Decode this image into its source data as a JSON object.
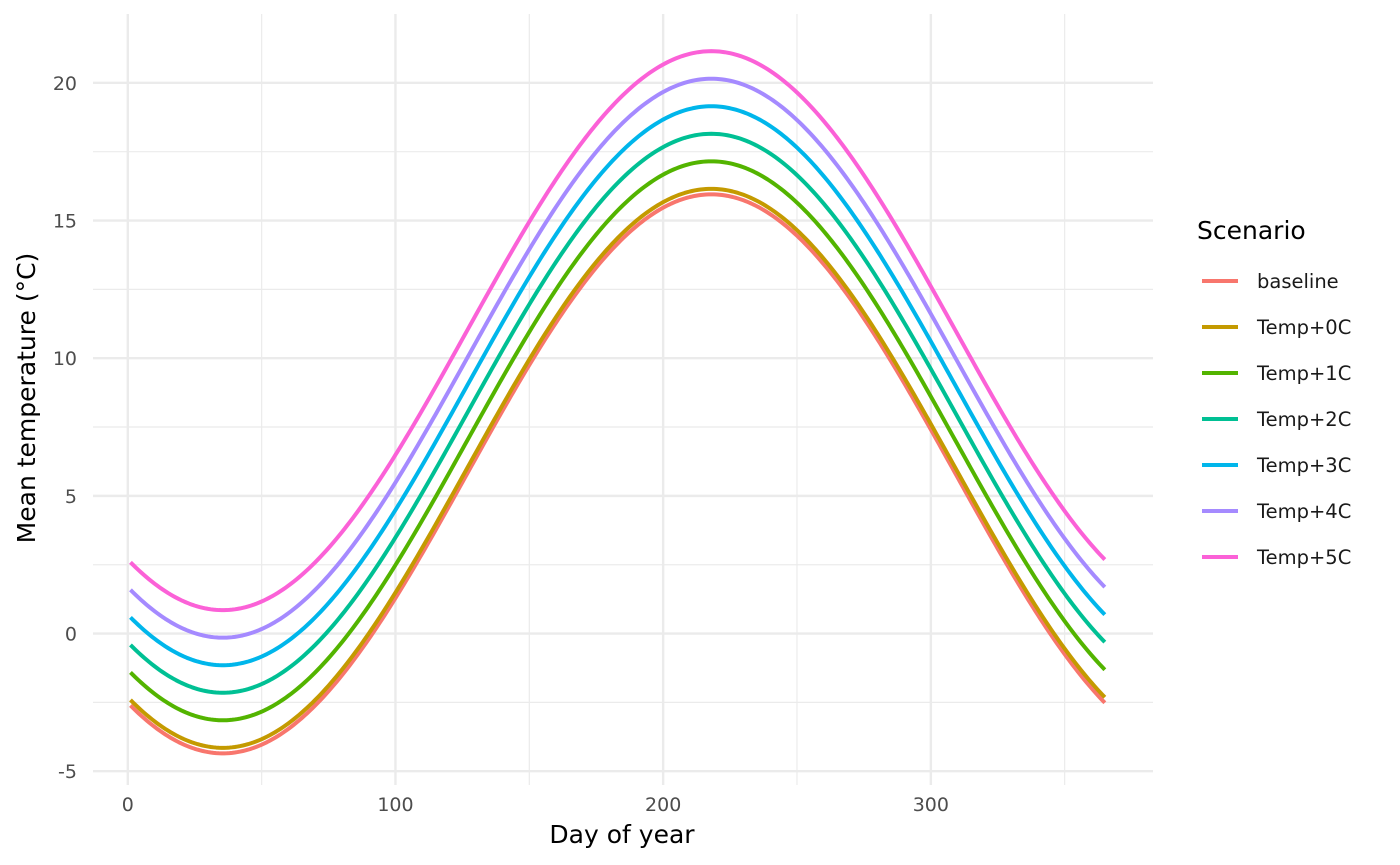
{
  "chart_data": {
    "type": "line",
    "title": "",
    "xlabel": "Day of year",
    "ylabel": "Mean temperature (°C)",
    "xlim": [
      -13,
      383
    ],
    "ylim": [
      -5.5,
      22.5
    ],
    "x_ticks": [
      0,
      100,
      200,
      300
    ],
    "x_minor_ticks": [
      50,
      150,
      250,
      350
    ],
    "y_ticks": [
      -5,
      0,
      5,
      10,
      15,
      20
    ],
    "y_minor_ticks": [
      -2.5,
      2.5,
      7.5,
      12.5,
      17.5
    ],
    "grid": true,
    "legend_title": "Scenario",
    "legend_position": "right",
    "curve": {
      "day_range": [
        1,
        365
      ],
      "mean": 6.0,
      "amplitude": 10.15,
      "peak_day": 218,
      "period": 365
    },
    "series": [
      {
        "name": "baseline",
        "offset": -0.2,
        "color": "#F8766D"
      },
      {
        "name": "Temp+0C",
        "offset": 0,
        "color": "#C49A00"
      },
      {
        "name": "Temp+1C",
        "offset": 1,
        "color": "#53B400"
      },
      {
        "name": "Temp+2C",
        "offset": 2,
        "color": "#00C094"
      },
      {
        "name": "Temp+3C",
        "offset": 3,
        "color": "#00B6EB"
      },
      {
        "name": "Temp+4C",
        "offset": 4,
        "color": "#A58AFF"
      },
      {
        "name": "Temp+5C",
        "offset": 5,
        "color": "#FB61D7"
      }
    ]
  }
}
